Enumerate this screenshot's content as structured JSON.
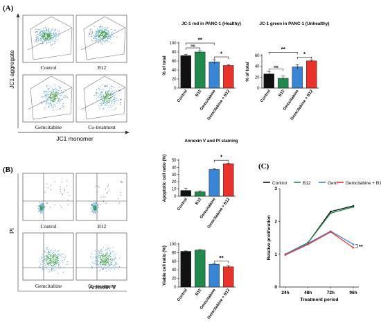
{
  "panels": {
    "A": "(A)",
    "B": "(B)",
    "C": "(C)"
  },
  "flow_A": {
    "plot_labels": [
      "Control",
      "B12",
      "Gemcitabine",
      "Co-treatment"
    ],
    "y_axis": "JC1 aggregate",
    "x_axis": "JC1 monomer"
  },
  "flow_B": {
    "plot_labels": [
      "Control",
      "B12",
      "Gemcitabine",
      "Co-treatment"
    ],
    "y_axis": "PI",
    "x_axis": "Annexin V"
  },
  "colors": {
    "black": "#111111",
    "green": "#1f8a4c",
    "blue": "#3a86d6",
    "red": "#e8322a",
    "grid": "#888888"
  },
  "chart_data": [
    {
      "id": "jc1_red",
      "type": "bar",
      "title": "JC-1 red in PANC-1 (Healthy)",
      "ylabel": "% of total",
      "categories": [
        "Control",
        "B12",
        "Gemcitabine",
        "Gemcitabine + B12"
      ],
      "values": [
        72,
        80,
        58,
        50
      ],
      "errors": [
        3,
        3,
        5,
        2
      ],
      "ylim": [
        0,
        100
      ],
      "yticks": [
        0,
        20,
        40,
        60,
        80,
        100
      ],
      "annotations": [
        {
          "from": 0,
          "to": 2,
          "text": "**"
        },
        {
          "from": 0,
          "to": 1,
          "text": "ns"
        },
        {
          "from": 2,
          "to": 3,
          "text": "*"
        }
      ]
    },
    {
      "id": "jc1_green",
      "type": "bar",
      "title": "JC-1 green in PANC-1 (Unhealthy)",
      "ylabel": "% of total",
      "categories": [
        "Control",
        "B12",
        "Gemcitabine",
        "Gemcitabine + B12"
      ],
      "values": [
        26,
        18,
        39,
        50
      ],
      "errors": [
        4,
        4,
        4,
        2
      ],
      "ylim": [
        0,
        60
      ],
      "yticks": [
        0,
        20,
        40,
        60
      ],
      "annotations": [
        {
          "from": 0,
          "to": 2,
          "text": "**"
        },
        {
          "from": 0,
          "to": 1,
          "text": "ns"
        },
        {
          "from": 2,
          "to": 3,
          "text": "*"
        }
      ]
    },
    {
      "id": "apoptotic",
      "type": "bar",
      "title": "Annexin V and PI staining",
      "ylabel": "Apoptotic cell ratio (%)",
      "categories": [
        "Control",
        "B12",
        "Gemcitabine",
        "Gemcitabine + B12"
      ],
      "values": [
        8,
        6,
        37,
        45
      ],
      "errors": [
        3,
        1,
        1,
        1
      ],
      "ylim": [
        0,
        50
      ],
      "yticks": [
        0,
        10,
        20,
        30,
        40,
        50
      ],
      "annotations": [
        {
          "from": 2,
          "to": 3,
          "text": "*"
        }
      ]
    },
    {
      "id": "viable",
      "type": "bar",
      "title": "",
      "ylabel": "Viable cell ratio (%)",
      "categories": [
        "Control",
        "B12",
        "Gemcitabine",
        "Gemcitabine + B12"
      ],
      "values": [
        83,
        86,
        53,
        47
      ],
      "errors": [
        1,
        1,
        1,
        3
      ],
      "ylim": [
        0,
        100
      ],
      "yticks": [
        0,
        20,
        40,
        60,
        80,
        100
      ],
      "annotations": [
        {
          "from": 2,
          "to": 3,
          "text": "**"
        }
      ]
    },
    {
      "id": "proliferation",
      "type": "line",
      "title": "",
      "xlabel": "Treatment period",
      "ylabel": "Relative proliferation",
      "categories": [
        "24h",
        "48h",
        "72h",
        "96h"
      ],
      "ylim": [
        0,
        3
      ],
      "yticks": [
        0,
        1,
        2,
        3
      ],
      "legend": "top",
      "series": [
        {
          "name": "Control",
          "values": [
            1.0,
            1.35,
            2.3,
            2.47
          ]
        },
        {
          "name": "B12",
          "values": [
            1.0,
            1.35,
            2.25,
            2.44
          ]
        },
        {
          "name": "Gem",
          "values": [
            1.0,
            1.33,
            1.7,
            1.3
          ]
        },
        {
          "name": "Gemcitabine + B12",
          "values": [
            0.98,
            1.3,
            1.68,
            1.2
          ]
        }
      ],
      "annotation": "**"
    }
  ]
}
